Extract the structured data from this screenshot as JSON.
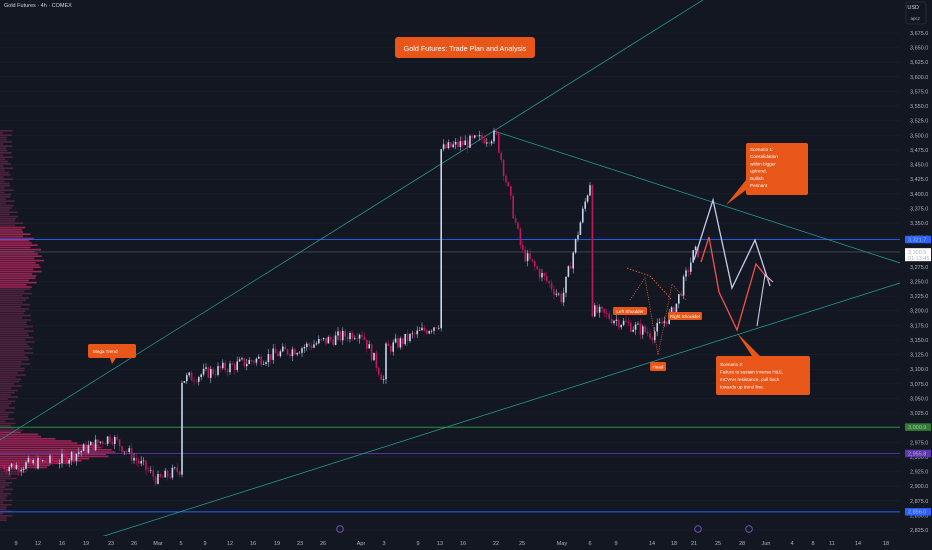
{
  "header": {
    "symbol": "Gold Futures · 4h · COMEX",
    "currency": "USD",
    "scale_hint": "apcz"
  },
  "title_box": "Gold Futures: Trade Plan and Analysis",
  "annotations": {
    "mega_trend": "Mega Trend",
    "scenario1": [
      "Scenario 1:",
      "Consolidation",
      "within bigger",
      "uptrend,",
      "Bullish",
      "Pennant"
    ],
    "scenario2": [
      "Scenario 2:",
      "Failure to sustain inverse H&S,",
      "mCVAH resistance, pull back",
      "towards up trend line."
    ],
    "left_shoulder": "Left Shoulder",
    "right_shoulder": "Right Shoulder",
    "head": "Head"
  },
  "price_axis": {
    "ticks": [
      "3,675.0",
      "3,650.0",
      "3,625.0",
      "3,600.0",
      "3,575.0",
      "3,550.0",
      "3,525.0",
      "3,500.0",
      "3,475.0",
      "3,450.0",
      "3,425.0",
      "3,400.0",
      "3,375.0",
      "3,350.0",
      "3,325.0",
      "3,300.0",
      "3,275.0",
      "3,250.0",
      "3,225.0",
      "3,200.0",
      "3,175.0",
      "3,150.0",
      "3,125.0",
      "3,100.0",
      "3,075.0",
      "3,050.0",
      "3,025.0",
      "3,000.0",
      "2,975.0",
      "2,950.0",
      "2,925.0",
      "2,900.0",
      "2,875.0",
      "2,850.0",
      "2,825.0"
    ],
    "labels": [
      {
        "text": "3,321.7",
        "value": 3321.7,
        "color": "#2962ff"
      },
      {
        "text": "3,300.5",
        "value": 3300.5,
        "color": "#ffffff",
        "sub": "01:13:45"
      },
      {
        "text": "3,000.9",
        "value": 3000.9,
        "color": "#2e7d32"
      },
      {
        "text": "2,955.8",
        "value": 2955.8,
        "color": "#5e35b1"
      },
      {
        "text": "2,856.0",
        "value": 2856.0,
        "color": "#2962ff"
      }
    ]
  },
  "time_axis": {
    "ticks": [
      "9",
      "12",
      "16",
      "19",
      "23",
      "26",
      "Mar",
      "5",
      "9",
      "12",
      "16",
      "19",
      "23",
      "26",
      "Apr",
      "3",
      "9",
      "13",
      "16",
      "22",
      "25",
      "May",
      "6",
      "9",
      "14",
      "18",
      "21",
      "25",
      "28",
      "Jun",
      "4",
      "8",
      "11",
      "14",
      "18"
    ]
  },
  "chart_data": {
    "type": "candlestick",
    "title": "Gold Futures: Trade Plan and Analysis",
    "series": [
      {
        "name": "Gold Futures · 4h · COMEX",
        "key_points": [
          {
            "x": "9",
            "y": 2935
          },
          {
            "x": "16",
            "y": 2945
          },
          {
            "x": "23",
            "y": 2985
          },
          {
            "x": "Mar",
            "y": 2910
          },
          {
            "x": "5",
            "y": 2930
          },
          {
            "x": "12",
            "y": 2965
          },
          {
            "x": "19",
            "y": 3040
          },
          {
            "x": "26",
            "y": 3060
          },
          {
            "x": "Apr",
            "y": 3165
          },
          {
            "x": "3",
            "y": 3080
          },
          {
            "x": "9",
            "y": 2980
          },
          {
            "x": "13",
            "y": 3180
          },
          {
            "x": "16",
            "y": 3310
          },
          {
            "x": "22",
            "y": 3500
          },
          {
            "x": "25",
            "y": 3300
          },
          {
            "x": "May",
            "y": 3220
          },
          {
            "x": "6",
            "y": 3420
          },
          {
            "x": "9",
            "y": 3320
          },
          {
            "x": "14",
            "y": 3160
          },
          {
            "x": "18",
            "y": 3200
          },
          {
            "x": "21",
            "y": 3300
          }
        ]
      }
    ],
    "levels": [
      3321.7,
      3300.5,
      3000.9,
      2955.8,
      2856.0
    ],
    "ylim": [
      2825,
      3675
    ]
  }
}
